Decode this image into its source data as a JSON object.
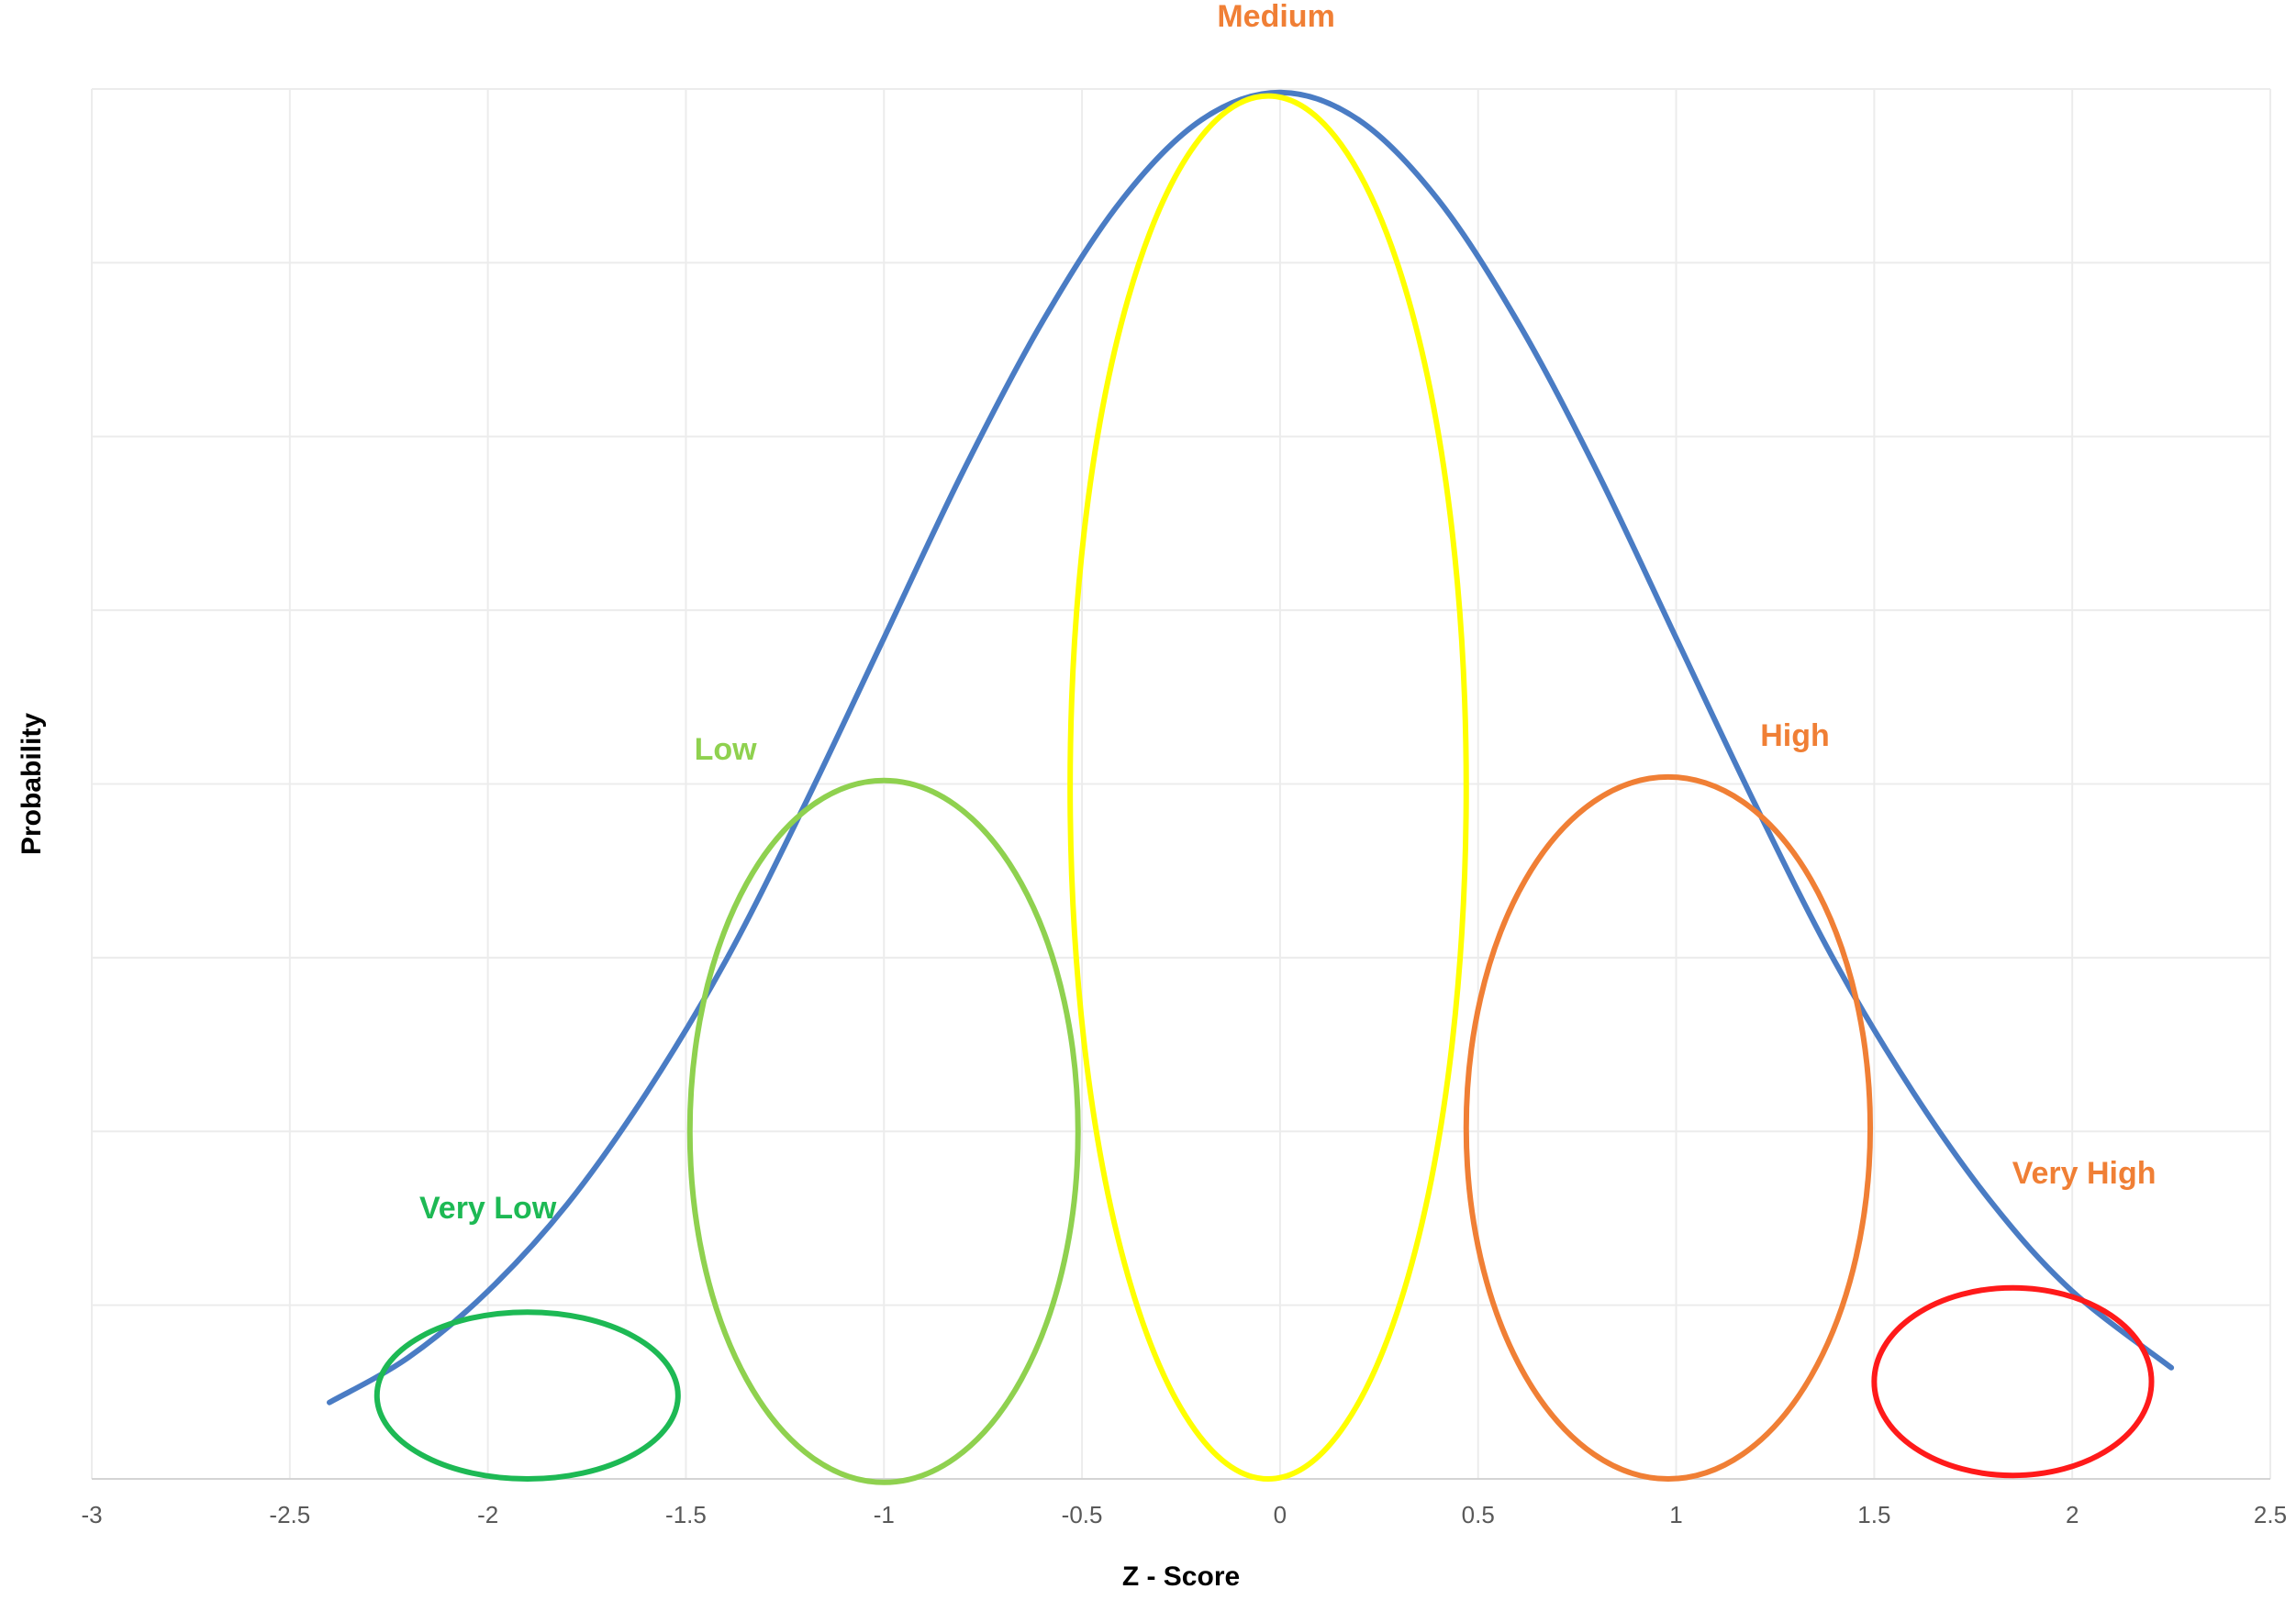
{
  "chart_data": {
    "type": "line",
    "title": "",
    "xlabel": "Z - Score",
    "ylabel": "Probability",
    "xlim": [
      -3,
      2.5
    ],
    "ylim": [
      0,
      0.4
    ],
    "x_ticks": [
      -3,
      -2.5,
      -2,
      -1.5,
      -1,
      -0.5,
      0,
      0.5,
      1,
      1.5,
      2,
      2.5
    ],
    "x_tick_labels": [
      "-3",
      "-2.5",
      "-2",
      "-1.5",
      "-1",
      "-0.5",
      "0",
      "0.5",
      "1",
      "1.5",
      "2",
      "2.5"
    ],
    "y_ticks": [
      0,
      0.05,
      0.1,
      0.15,
      0.2,
      0.25,
      0.3,
      0.35,
      0.4
    ],
    "y_tick_labels_visible": false,
    "grid": true,
    "legend": "none",
    "series": [
      {
        "color": "#4a7cc4",
        "x": [
          -2.4,
          -2.2,
          -2.0,
          -1.8,
          -1.6,
          -1.4,
          -1.2,
          -1.0,
          -0.8,
          -0.6,
          -0.4,
          -0.2,
          0.0,
          0.2,
          0.4,
          0.6,
          0.8,
          1.0,
          1.2,
          1.4,
          1.6,
          1.8,
          2.0,
          2.25
        ],
        "y": [
          0.022,
          0.035,
          0.054,
          0.079,
          0.111,
          0.149,
          0.194,
          0.242,
          0.29,
          0.333,
          0.368,
          0.391,
          0.399,
          0.391,
          0.368,
          0.333,
          0.29,
          0.242,
          0.194,
          0.149,
          0.111,
          0.079,
          0.054,
          0.032
        ]
      }
    ],
    "annotations": [
      {
        "label": "Very Low",
        "color": "#1db954",
        "cx": -1.9,
        "cy": 0.024,
        "rx": 0.38,
        "ry": 0.024,
        "label_x": -2.0,
        "label_y": 0.075
      },
      {
        "label": "Low",
        "color": "#8fd14f",
        "cx": -1.0,
        "cy": 0.1,
        "rx": 0.49,
        "ry": 0.101,
        "label_x": -1.4,
        "label_y": 0.207
      },
      {
        "label": "Medium",
        "color": "#ffff00",
        "cx": -0.03,
        "cy": 0.199,
        "rx": 0.5,
        "ry": 0.199,
        "label_x": -0.01,
        "label_y": 0.418
      },
      {
        "label": "High",
        "color": "#f07f35",
        "cx": 0.98,
        "cy": 0.101,
        "rx": 0.51,
        "ry": 0.101,
        "label_x": 1.3,
        "label_y": 0.211
      },
      {
        "label": "Very High",
        "color": "#ff1a1a",
        "cx": 1.85,
        "cy": 0.028,
        "rx": 0.35,
        "ry": 0.027,
        "label_x": 2.03,
        "label_y": 0.085
      }
    ],
    "label_colors": {
      "Very Low": "#1db954",
      "Low": "#8fd14f",
      "Medium": "#f07f35",
      "High": "#f07f35",
      "Very High": "#f07f35"
    }
  }
}
